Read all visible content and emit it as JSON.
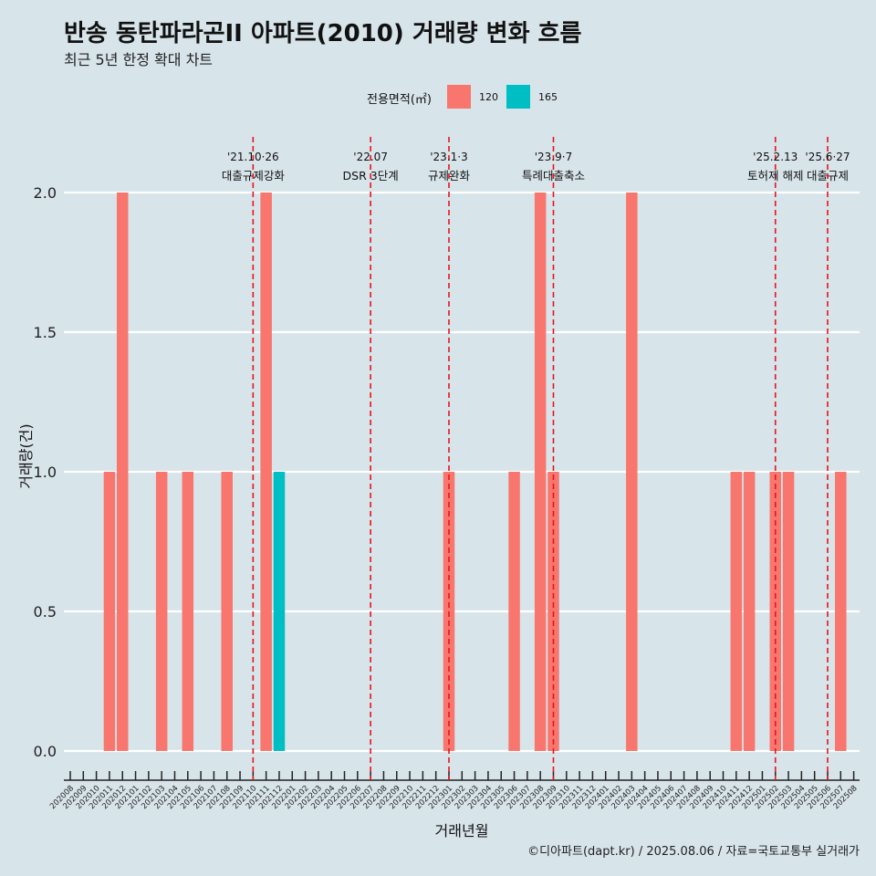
{
  "header": {
    "title": "반송 동탄파라곤II 아파트(2010) 거래량 변화 흐름",
    "subtitle": "최근 5년 한정 확대 차트"
  },
  "legend": {
    "title": "전용면적(㎡)",
    "items": [
      {
        "label": "120",
        "color": "#f8766d"
      },
      {
        "label": "165",
        "color": "#00bfc4"
      }
    ]
  },
  "caption": "©디아파트(dapt.kr) / 2025.08.06 / 자료=국토교통부 실거래가",
  "chart_data": {
    "type": "bar",
    "title": "반송 동탄파라곤II 아파트(2010) 거래량 변화 흐름",
    "subtitle": "최근 5년 한정 확대 차트",
    "xlabel": "거래년월",
    "ylabel": "거래량(건)",
    "ylim": [
      -0.07,
      2.2
    ],
    "yticks": [
      "0.0",
      "0.5",
      "1.0",
      "1.5",
      "2.0"
    ],
    "ytick_values": [
      0,
      0.5,
      1.0,
      1.5,
      2.0
    ],
    "grid": "horizontal-major",
    "legend_position": "top",
    "categories": [
      "202008",
      "202009",
      "202010",
      "202011",
      "202012",
      "202101",
      "202102",
      "202103",
      "202104",
      "202105",
      "202106",
      "202107",
      "202108",
      "202109",
      "202110",
      "202111",
      "202112",
      "202201",
      "202202",
      "202203",
      "202204",
      "202205",
      "202206",
      "202207",
      "202208",
      "202209",
      "202210",
      "202211",
      "202212",
      "202301",
      "202302",
      "202303",
      "202304",
      "202305",
      "202306",
      "202307",
      "202308",
      "202309",
      "202310",
      "202311",
      "202312",
      "202401",
      "202402",
      "202403",
      "202404",
      "202405",
      "202406",
      "202407",
      "202408",
      "202409",
      "202410",
      "202411",
      "202412",
      "202501",
      "202502",
      "202503",
      "202504",
      "202505",
      "202506",
      "202507",
      "202508"
    ],
    "series": [
      {
        "name": "120",
        "color": "#f8766d",
        "points": [
          {
            "x": "202011",
            "y": 1
          },
          {
            "x": "202012",
            "y": 2
          },
          {
            "x": "202103",
            "y": 1
          },
          {
            "x": "202105",
            "y": 1
          },
          {
            "x": "202108",
            "y": 1
          },
          {
            "x": "202111",
            "y": 2
          },
          {
            "x": "202301",
            "y": 1
          },
          {
            "x": "202306",
            "y": 1
          },
          {
            "x": "202308",
            "y": 2
          },
          {
            "x": "202309",
            "y": 1
          },
          {
            "x": "202403",
            "y": 2
          },
          {
            "x": "202411",
            "y": 1
          },
          {
            "x": "202412",
            "y": 1
          },
          {
            "x": "202502",
            "y": 1
          },
          {
            "x": "202503",
            "y": 1
          },
          {
            "x": "202507",
            "y": 1
          }
        ]
      },
      {
        "name": "165",
        "color": "#00bfc4",
        "points": [
          {
            "x": "202112",
            "y": 1
          }
        ]
      }
    ],
    "annotations": [
      {
        "x": "202110",
        "date": "'21.10·26",
        "label": "대출규제강화"
      },
      {
        "x": "202207",
        "date": "'22.07",
        "label": "DSR 3단계"
      },
      {
        "x": "202301",
        "date": "'23.1·3",
        "label": "규제완화"
      },
      {
        "x": "202309",
        "date": "'23.9·7",
        "label": "특례대출축소"
      },
      {
        "x": "202502",
        "date": "'25.2.13",
        "label": "토허제 해제"
      },
      {
        "x": "202506",
        "date": "'25.6·27",
        "label": "대출규제"
      }
    ]
  }
}
